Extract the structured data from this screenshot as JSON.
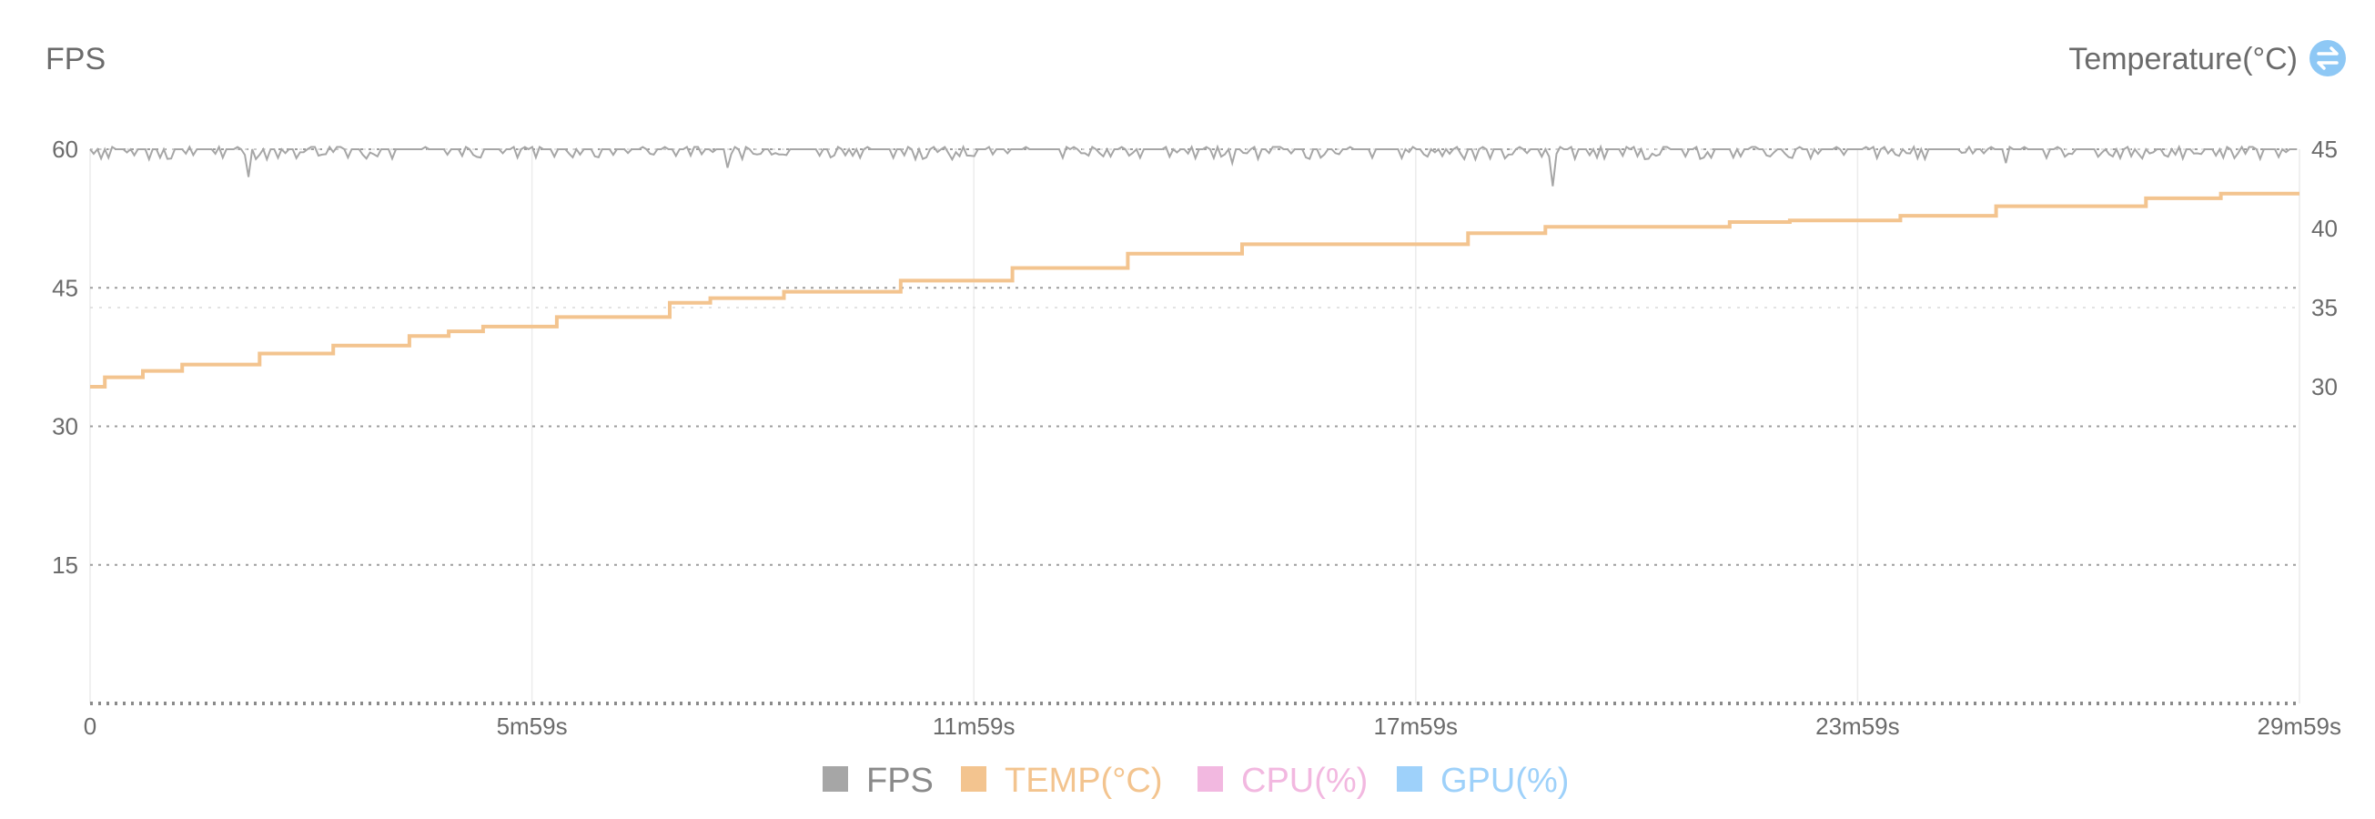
{
  "chart_data": {
    "type": "line",
    "left_axis_title": "FPS",
    "right_axis_title": "Temperature(°C)",
    "toggle_icon": "swap-arrows-icon",
    "x_ticks": [
      "0",
      "5m59s",
      "11m59s",
      "17m59s",
      "23m59s",
      "29m59s"
    ],
    "x_range_seconds": [
      0,
      1799
    ],
    "left_axis": {
      "ticks": [
        "60",
        "45",
        "30",
        "15"
      ],
      "ylim": [
        0,
        60
      ]
    },
    "right_axis": {
      "ticks": [
        "45",
        "40",
        "35",
        "30"
      ],
      "ylim": [
        10,
        45
      ]
    },
    "grid": true,
    "legend_position": "bottom-center",
    "series": [
      {
        "name": "FPS",
        "axis": "left",
        "color": "#a6a6a6",
        "baseline": 60,
        "dips": [
          [
            130,
            57
          ],
          [
            520,
            58
          ],
          [
            930,
            58.5
          ],
          [
            1190,
            56
          ],
          [
            1560,
            58.5
          ]
        ]
      },
      {
        "name": "TEMP(°C)",
        "axis": "right",
        "color": "#f3c48f",
        "steps": [
          [
            0,
            30
          ],
          [
            12,
            30.6
          ],
          [
            43,
            31.0
          ],
          [
            75,
            31.4
          ],
          [
            138,
            32.1
          ],
          [
            198,
            32.6
          ],
          [
            260,
            33.2
          ],
          [
            292,
            33.5
          ],
          [
            320,
            33.8
          ],
          [
            380,
            34.4
          ],
          [
            472,
            35.3
          ],
          [
            505,
            35.6
          ],
          [
            565,
            36.0
          ],
          [
            660,
            36.7
          ],
          [
            751,
            37.5
          ],
          [
            845,
            38.4
          ],
          [
            938,
            39.0
          ],
          [
            1122,
            39.7
          ],
          [
            1185,
            40.1
          ],
          [
            1335,
            40.4
          ],
          [
            1384,
            40.5
          ],
          [
            1474,
            40.8
          ],
          [
            1552,
            41.4
          ],
          [
            1674,
            41.9
          ],
          [
            1735,
            42.2
          ],
          [
            1799,
            42.2
          ]
        ]
      },
      {
        "name": "CPU(%)",
        "color": "#f2b8e0",
        "values": []
      },
      {
        "name": "GPU(%)",
        "color": "#9ed1fa",
        "values": []
      }
    ]
  }
}
